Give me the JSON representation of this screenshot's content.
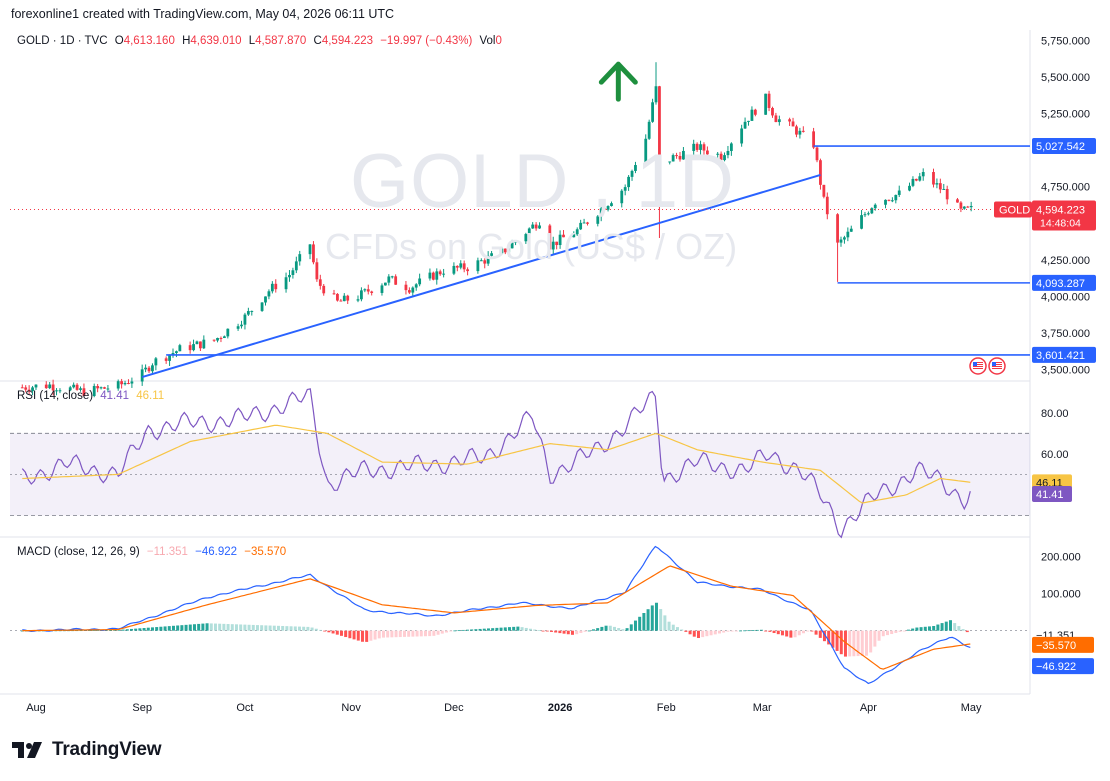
{
  "header": {
    "text": "forexonline1 created with TradingView.com, May 04, 2026 06:11 UTC"
  },
  "watermark": {
    "symbol": "GOLD , 1D",
    "description": "CFDs on Gold (US$ / OZ)"
  },
  "legend_price": {
    "title": "GOLD · 1D · TVC",
    "open_label": "O",
    "open": "4,613.160",
    "high_label": "H",
    "high": "4,639.010",
    "low_label": "L",
    "low": "4,587.870",
    "close_label": "C",
    "close": "4,594.223",
    "change": "−19.997 (−0.43%)",
    "vol_label": "Vol",
    "vol": "0"
  },
  "legend_rsi": {
    "title": "RSI (14, close)",
    "rsi": "41.41",
    "ma": "46.11"
  },
  "legend_macd": {
    "title": "MACD (close, 12, 26, 9)",
    "hist": "−11.351",
    "macd": "−46.922",
    "signal": "−35.570"
  },
  "footer": {
    "brand": "TradingView"
  },
  "colors": {
    "up": "#089981",
    "down": "#f23645",
    "line": "#2962ff",
    "arrow": "#1e8f3e"
  },
  "chart_data": [
    {
      "type": "candlestick",
      "title": "GOLD · 1D · TVC",
      "y_axis_ticks": [
        "5,750.000",
        "5,500.000",
        "5,250.000",
        "4,750.000",
        "4,250.000",
        "4,000.000",
        "3,750.000",
        "3,500.000"
      ],
      "y_tick_values": [
        5750,
        5500,
        5250,
        4750,
        4250,
        4000,
        3750,
        3500
      ],
      "ylim": [
        3430,
        5820
      ],
      "x_axis_labels": [
        {
          "label": "Aug",
          "date": "2025-08-01"
        },
        {
          "label": "Sep",
          "date": "2025-09-01"
        },
        {
          "label": "Oct",
          "date": "2025-10-01"
        },
        {
          "label": "Nov",
          "date": "2025-11-01"
        },
        {
          "label": "Dec",
          "date": "2025-12-01"
        },
        {
          "label": "2026",
          "date": "2026-01-01"
        },
        {
          "label": "Feb",
          "date": "2026-02-01"
        },
        {
          "label": "Mar",
          "date": "2026-03-01"
        },
        {
          "label": "Apr",
          "date": "2026-04-01"
        },
        {
          "label": "May",
          "date": "2026-05-01"
        }
      ],
      "price_path": [
        [
          "2025-07-28",
          3380
        ],
        [
          "2025-08-05",
          3395
        ],
        [
          "2025-08-15",
          3350
        ],
        [
          "2025-08-25",
          3390
        ],
        [
          "2025-09-01",
          3470
        ],
        [
          "2025-09-04",
          3550
        ],
        [
          "2025-09-12",
          3640
        ],
        [
          "2025-09-22",
          3700
        ],
        [
          "2025-10-01",
          3860
        ],
        [
          "2025-10-08",
          4040
        ],
        [
          "2025-10-14",
          4150
        ],
        [
          "2025-10-20",
          4360
        ],
        [
          "2025-10-22",
          4100
        ],
        [
          "2025-10-28",
          3960
        ],
        [
          "2025-11-03",
          4000
        ],
        [
          "2025-11-12",
          4120
        ],
        [
          "2025-11-18",
          4060
        ],
        [
          "2025-11-28",
          4180
        ],
        [
          "2025-12-05",
          4200
        ],
        [
          "2025-12-15",
          4300
        ],
        [
          "2025-12-26",
          4520
        ],
        [
          "2025-12-29",
          4350
        ],
        [
          "2026-01-06",
          4450
        ],
        [
          "2026-01-13",
          4600
        ],
        [
          "2026-01-20",
          4750
        ],
        [
          "2026-01-26",
          5080
        ],
        [
          "2026-01-29",
          5420
        ],
        [
          "2026-01-30",
          4900
        ],
        [
          "2026-02-03",
          4950
        ],
        [
          "2026-02-10",
          5020
        ],
        [
          "2026-02-17",
          4960
        ],
        [
          "2026-02-24",
          5200
        ],
        [
          "2026-03-02",
          5350
        ],
        [
          "2026-03-05",
          5220
        ],
        [
          "2026-03-10",
          5150
        ],
        [
          "2026-03-16",
          5040
        ],
        [
          "2026-03-19",
          4650
        ],
        [
          "2026-03-23",
          4350
        ],
        [
          "2026-03-27",
          4450
        ],
        [
          "2026-04-03",
          4650
        ],
        [
          "2026-04-10",
          4700
        ],
        [
          "2026-04-17",
          4830
        ],
        [
          "2026-04-23",
          4720
        ],
        [
          "2026-04-28",
          4580
        ],
        [
          "2026-05-01",
          4594
        ]
      ],
      "spikes": [
        {
          "date": "2026-01-29",
          "high": 5600
        },
        {
          "date": "2026-01-30",
          "low": 4400
        },
        {
          "date": "2026-03-23",
          "low": 4100
        }
      ],
      "current_price": {
        "value": 4594.223,
        "symbol": "GOLD",
        "countdown": "14:48:04"
      },
      "levels": [
        {
          "value": 5027.542,
          "label": "5,027.542",
          "from": "2026-03-16"
        },
        {
          "value": 4093.287,
          "label": "4,093.287",
          "from": "2026-03-23"
        },
        {
          "value": 3601.421,
          "label": "3,601.421",
          "from": "2025-09-08"
        }
      ],
      "trendline": {
        "from": [
          "2025-09-01",
          3450
        ],
        "to": [
          "2026-03-18",
          4830
        ]
      },
      "arrow_up": {
        "date": "2026-01-18",
        "price": 5450
      }
    },
    {
      "type": "line",
      "title": "RSI (14, close)",
      "y_axis_ticks": [
        "80.00",
        "60.00"
      ],
      "ylim": [
        20,
        95
      ],
      "band": [
        30,
        70
      ],
      "middle": 50,
      "series": [
        {
          "name": "RSI",
          "values": [
            [
              "2025-07-28",
              48
            ],
            [
              "2025-08-10",
              55
            ],
            [
              "2025-08-25",
              50
            ],
            [
              "2025-09-03",
              72
            ],
            [
              "2025-09-15",
              75
            ],
            [
              "2025-09-30",
              77
            ],
            [
              "2025-10-20",
              88
            ],
            [
              "2025-10-25",
              45
            ],
            [
              "2025-11-05",
              52
            ],
            [
              "2025-11-20",
              54
            ],
            [
              "2025-12-10",
              58
            ],
            [
              "2025-12-24",
              78
            ],
            [
              "2025-12-29",
              50
            ],
            [
              "2026-01-12",
              62
            ],
            [
              "2026-01-29",
              88
            ],
            [
              "2026-01-31",
              48
            ],
            [
              "2026-02-10",
              56
            ],
            [
              "2026-02-24",
              52
            ],
            [
              "2026-03-03",
              60
            ],
            [
              "2026-03-12",
              52
            ],
            [
              "2026-03-18",
              40
            ],
            [
              "2026-03-24",
              24
            ],
            [
              "2026-04-02",
              38
            ],
            [
              "2026-04-15",
              52
            ],
            [
              "2026-04-22",
              47
            ],
            [
              "2026-04-29",
              38
            ],
            [
              "2026-05-01",
              41.41
            ]
          ]
        },
        {
          "name": "RSI MA",
          "values": [
            [
              "2025-07-28",
              48
            ],
            [
              "2025-08-25",
              50
            ],
            [
              "2025-09-15",
              66
            ],
            [
              "2025-10-10",
              74
            ],
            [
              "2025-10-25",
              70
            ],
            [
              "2025-11-10",
              56
            ],
            [
              "2025-12-05",
              55
            ],
            [
              "2025-12-29",
              65
            ],
            [
              "2026-01-15",
              62
            ],
            [
              "2026-01-29",
              70
            ],
            [
              "2026-02-10",
              62
            ],
            [
              "2026-03-01",
              56
            ],
            [
              "2026-03-18",
              52
            ],
            [
              "2026-03-30",
              36
            ],
            [
              "2026-04-12",
              40
            ],
            [
              "2026-04-22",
              48
            ],
            [
              "2026-05-01",
              46.11
            ]
          ]
        }
      ]
    },
    {
      "type": "line",
      "title": "MACD (close, 12, 26, 9)",
      "y_axis_ticks": [
        "200.000",
        "100.000"
      ],
      "ylim": [
        -160,
        250
      ],
      "series": [
        {
          "name": "MACD",
          "values": [
            [
              "2025-07-28",
              0
            ],
            [
              "2025-08-25",
              5
            ],
            [
              "2025-09-20",
              90
            ],
            [
              "2025-10-20",
              150
            ],
            [
              "2025-11-05",
              55
            ],
            [
              "2025-11-25",
              40
            ],
            [
              "2025-12-20",
              75
            ],
            [
              "2026-01-05",
              60
            ],
            [
              "2026-01-20",
              105
            ],
            [
              "2026-01-29",
              230
            ],
            [
              "2026-02-10",
              130
            ],
            [
              "2026-03-01",
              110
            ],
            [
              "2026-03-15",
              55
            ],
            [
              "2026-03-25",
              -100
            ],
            [
              "2026-04-01",
              -145
            ],
            [
              "2026-04-15",
              -60
            ],
            [
              "2026-04-25",
              -15
            ],
            [
              "2026-05-01",
              -46.922
            ]
          ]
        },
        {
          "name": "Signal",
          "values": [
            [
              "2025-07-28",
              0
            ],
            [
              "2025-08-25",
              3
            ],
            [
              "2025-09-20",
              70
            ],
            [
              "2025-10-20",
              140
            ],
            [
              "2025-11-10",
              70
            ],
            [
              "2025-12-01",
              48
            ],
            [
              "2025-12-25",
              68
            ],
            [
              "2026-01-15",
              75
            ],
            [
              "2026-02-02",
              175
            ],
            [
              "2026-02-20",
              120
            ],
            [
              "2026-03-10",
              95
            ],
            [
              "2026-03-25",
              -30
            ],
            [
              "2026-04-05",
              -105
            ],
            [
              "2026-04-20",
              -50
            ],
            [
              "2026-05-01",
              -35.57
            ]
          ]
        }
      ],
      "histogram_last": -11.351
    }
  ],
  "price_axis_labels": {
    "current": "4,594.223",
    "rsi": "41.41",
    "rsi_ma": "46.11",
    "macd_hist": "−11.351",
    "macd_signal": "−35.570",
    "macd": "−46.922"
  }
}
